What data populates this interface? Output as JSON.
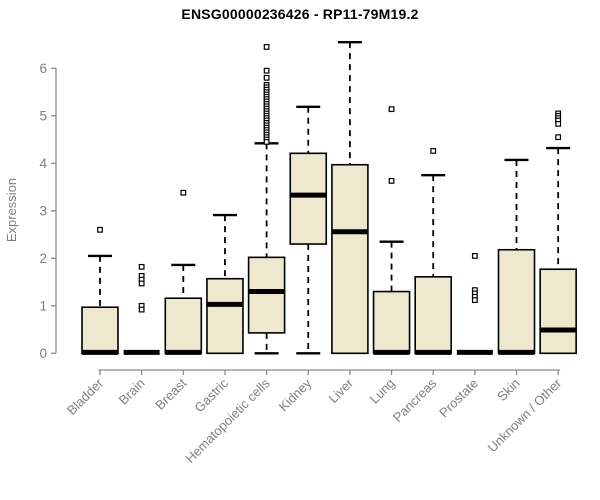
{
  "header": {
    "title": "ENSG00000236426 - RP11-79M19.2"
  },
  "chart_data": {
    "type": "boxplot",
    "title": "ENSG00000236426 - RP11-79M19.2",
    "xlabel": "",
    "ylabel": "Expression",
    "ylim": [
      0,
      6.6
    ],
    "yticks": [
      0,
      1,
      2,
      3,
      4,
      5,
      6
    ],
    "grid": false,
    "legend": "none",
    "box_fill": "#ede8ce",
    "box_stroke": "#000000",
    "axis_color": "#8a8a8a",
    "label_color": "#808080",
    "title_color": "#000000",
    "categories": [
      "Bladder",
      "Brain",
      "Breast",
      "Gastric",
      "Hematopoietic cells",
      "Kidney",
      "Liver",
      "Lung",
      "Pancreas",
      "Prostate",
      "Skin",
      "Unknown / Other"
    ],
    "series": [
      {
        "category": "Bladder",
        "q1": 0,
        "median": 0.02,
        "q3": 0.97,
        "whisker_low": 0,
        "whisker_high": 2.05,
        "outliers": [
          2.6
        ]
      },
      {
        "category": "Brain",
        "q1": 0,
        "median": 0.02,
        "q3": 0,
        "whisker_low": 0,
        "whisker_high": 0,
        "outliers": [
          1.82,
          1.63,
          1.55,
          1.47,
          1.0,
          0.92
        ]
      },
      {
        "category": "Breast",
        "q1": 0,
        "median": 0.02,
        "q3": 1.16,
        "whisker_low": 0,
        "whisker_high": 1.86,
        "outliers": [
          3.38
        ]
      },
      {
        "category": "Gastric",
        "q1": 0,
        "median": 1.03,
        "q3": 1.57,
        "whisker_low": 0,
        "whisker_high": 2.91,
        "outliers": []
      },
      {
        "category": "Hematopoietic cells",
        "q1": 0.43,
        "median": 1.3,
        "q3": 2.02,
        "whisker_low": 0,
        "whisker_high": 4.42,
        "outliers": [
          6.45,
          5.95,
          5.8,
          5.65,
          5.6,
          5.55,
          5.5,
          5.45,
          5.4,
          5.35,
          5.3,
          5.25,
          5.2,
          5.15,
          5.1,
          5.05,
          5.0,
          4.95,
          4.9,
          4.85,
          4.8,
          4.75,
          4.7,
          4.65,
          4.6,
          4.55,
          4.5,
          4.45
        ]
      },
      {
        "category": "Kidney",
        "q1": 2.3,
        "median": 3.33,
        "q3": 4.21,
        "whisker_low": 0,
        "whisker_high": 5.19,
        "outliers": []
      },
      {
        "category": "Liver",
        "q1": 0,
        "median": 2.56,
        "q3": 3.97,
        "whisker_low": 0,
        "whisker_high": 6.55,
        "outliers": []
      },
      {
        "category": "Lung",
        "q1": 0,
        "median": 0.02,
        "q3": 1.3,
        "whisker_low": 0,
        "whisker_high": 2.35,
        "outliers": [
          5.14,
          3.63
        ]
      },
      {
        "category": "Pancreas",
        "q1": 0,
        "median": 0.02,
        "q3": 1.61,
        "whisker_low": 0,
        "whisker_high": 3.75,
        "outliers": [
          4.26
        ]
      },
      {
        "category": "Prostate",
        "q1": 0,
        "median": 0.02,
        "q3": 0,
        "whisker_low": 0,
        "whisker_high": 0,
        "outliers": [
          2.05,
          1.33,
          1.26,
          1.19,
          1.12
        ]
      },
      {
        "category": "Skin",
        "q1": 0,
        "median": 0.02,
        "q3": 2.18,
        "whisker_low": 0,
        "whisker_high": 4.07,
        "outliers": []
      },
      {
        "category": "Unknown / Other",
        "q1": 0,
        "median": 0.49,
        "q3": 1.77,
        "whisker_low": 0,
        "whisker_high": 4.32,
        "outliers": [
          5.05,
          5.0,
          4.95,
          4.9,
          4.83,
          4.55
        ]
      }
    ]
  }
}
